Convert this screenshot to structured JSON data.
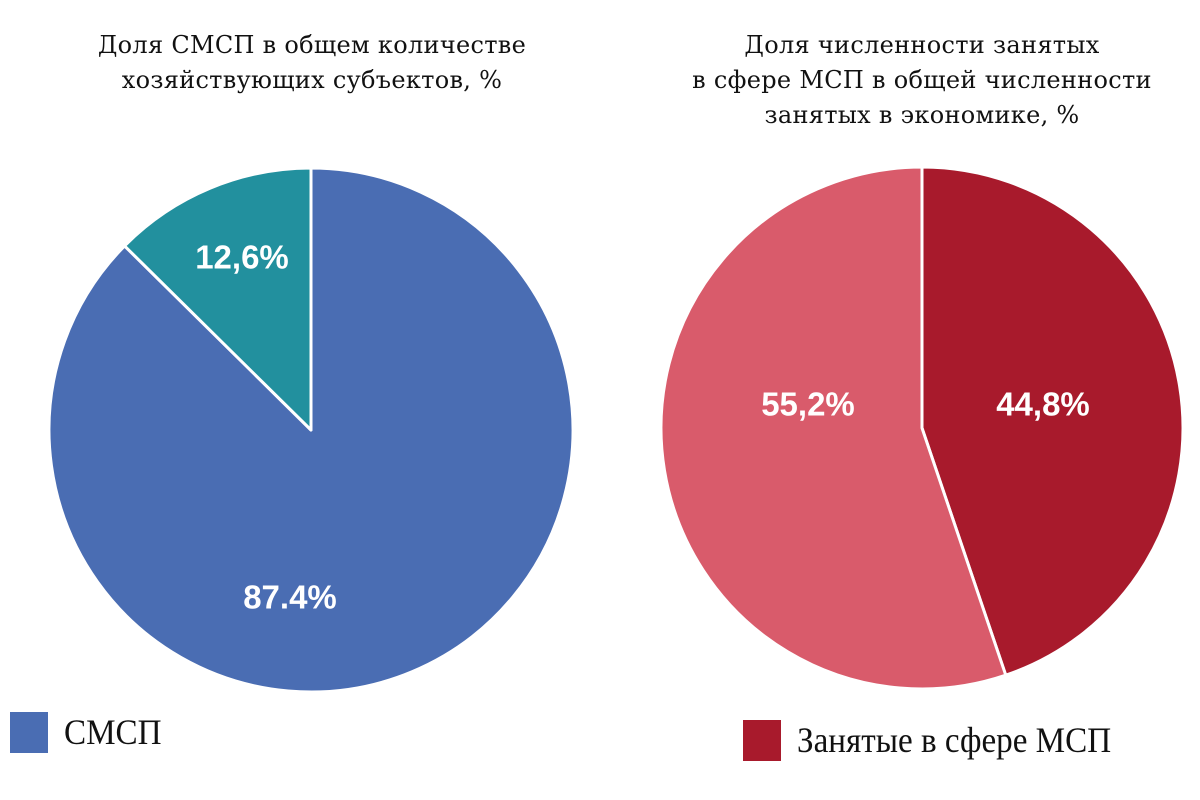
{
  "chart_data": [
    {
      "type": "pie",
      "title_lines": [
        "Доля СМСП в общем количестве",
        "хозяйствующих субъектов, %"
      ],
      "slices": [
        {
          "name": "СМСП",
          "value": 87.4,
          "label": "87.4%",
          "color": "#4A6DB3"
        },
        {
          "name": "other",
          "value": 12.6,
          "label": "12,6%",
          "color": "#22909E"
        }
      ],
      "legend": [
        {
          "label": "СМСП",
          "color": "#4A6DB3"
        }
      ],
      "legend_position": "bottom-left"
    },
    {
      "type": "pie",
      "title_lines": [
        "Доля численности занятых",
        "в сфере МСП в общей численности",
        "занятых в экономике, %"
      ],
      "slices": [
        {
          "name": "Занятые в сфере МСП",
          "value": 44.8,
          "label": "44,8%",
          "color": "#A81A2C"
        },
        {
          "name": "other",
          "value": 55.2,
          "label": "55,2%",
          "color": "#D95B6B"
        }
      ],
      "legend": [
        {
          "label": "Занятые в сфере МСП",
          "color": "#A81A2C"
        }
      ],
      "legend_position": "bottom-right"
    }
  ]
}
